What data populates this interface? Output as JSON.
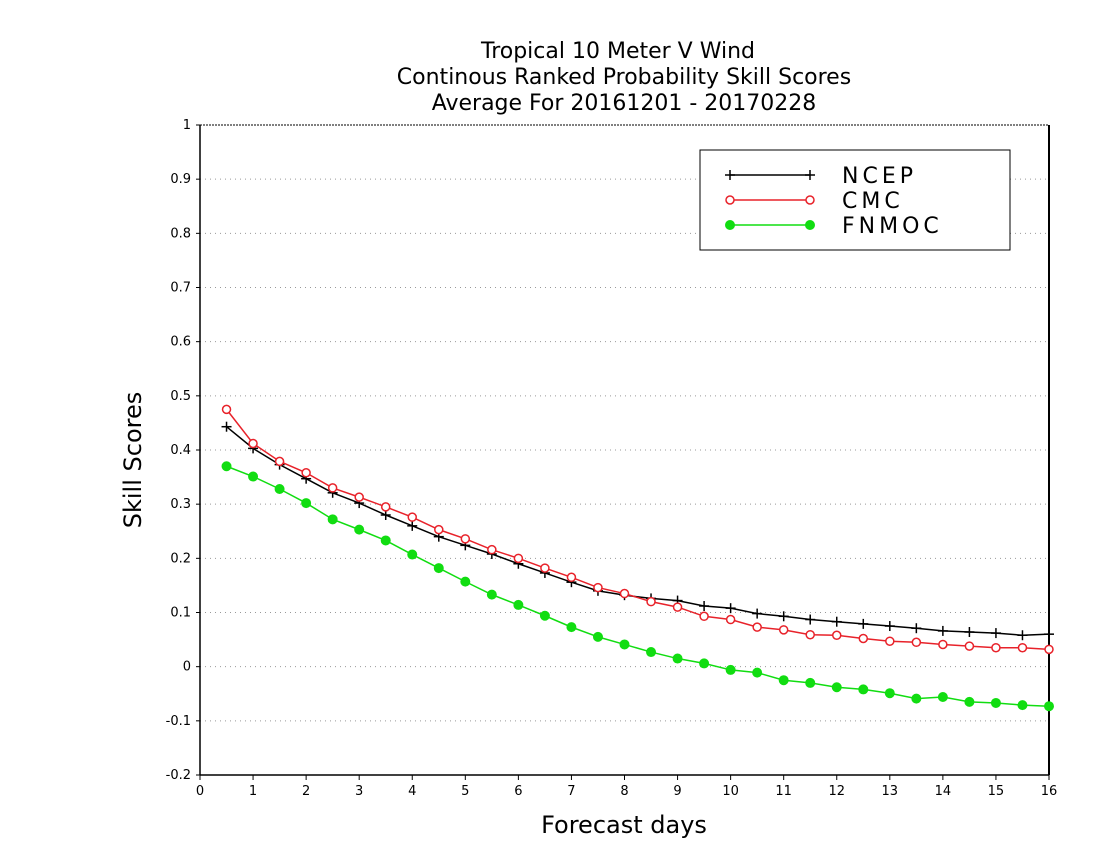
{
  "chart_data": {
    "type": "line",
    "title": [
      "Tropical 10 Meter V Wind",
      "Continous Ranked Probability Skill Scores",
      "Average For 20161201 - 20170228"
    ],
    "xlabel": "Forecast days",
    "ylabel": "Skill Scores",
    "xlim": [
      0,
      16
    ],
    "ylim": [
      -0.2,
      1
    ],
    "xticks": [
      "0",
      "1",
      "2",
      "3",
      "4",
      "5",
      "6",
      "7",
      "8",
      "9",
      "10",
      "11",
      "12",
      "13",
      "14",
      "15",
      "16"
    ],
    "yticks": [
      "-0.2",
      "-0.1",
      "0",
      "0.1",
      "0.2",
      "0.3",
      "0.4",
      "0.5",
      "0.6",
      "0.7",
      "0.8",
      "0.9",
      "1"
    ],
    "grid": "horizontal dotted",
    "legend_position": "top-right",
    "x": [
      0.5,
      1,
      1.5,
      2,
      2.5,
      3,
      3.5,
      4,
      4.5,
      5,
      5.5,
      6,
      6.5,
      7,
      7.5,
      8,
      8.5,
      9,
      9.5,
      10,
      10.5,
      11,
      11.5,
      12,
      12.5,
      13,
      13.5,
      14,
      14.5,
      15,
      15.5,
      16
    ],
    "series": [
      {
        "name": "NCEP",
        "color": "#000000",
        "marker": "plus",
        "values": [
          0.443,
          0.403,
          0.373,
          0.347,
          0.321,
          0.302,
          0.28,
          0.26,
          0.24,
          0.224,
          0.208,
          0.19,
          0.173,
          0.156,
          0.14,
          0.132,
          0.126,
          0.122,
          0.112,
          0.108,
          0.098,
          0.093,
          0.087,
          0.083,
          0.079,
          0.075,
          0.071,
          0.066,
          0.064,
          0.062,
          0.058,
          0.06
        ]
      },
      {
        "name": "CMC",
        "color": "#e8222a",
        "marker": "open-circle",
        "values": [
          0.475,
          0.412,
          0.379,
          0.358,
          0.33,
          0.313,
          0.295,
          0.276,
          0.253,
          0.236,
          0.216,
          0.2,
          0.182,
          0.165,
          0.146,
          0.135,
          0.12,
          0.11,
          0.093,
          0.087,
          0.073,
          0.068,
          0.059,
          0.058,
          0.052,
          0.047,
          0.045,
          0.041,
          0.038,
          0.035,
          0.035,
          0.032
        ]
      },
      {
        "name": "FNMOC",
        "color": "#11dd11",
        "marker": "filled-circle",
        "values": [
          0.37,
          0.351,
          0.328,
          0.302,
          0.272,
          0.253,
          0.233,
          0.207,
          0.182,
          0.157,
          0.133,
          0.114,
          0.094,
          0.073,
          0.055,
          0.041,
          0.027,
          0.015,
          0.006,
          -0.006,
          -0.011,
          -0.025,
          -0.03,
          -0.038,
          -0.042,
          -0.049,
          -0.059,
          -0.056,
          -0.065,
          -0.067,
          -0.071,
          -0.073
        ]
      }
    ]
  }
}
